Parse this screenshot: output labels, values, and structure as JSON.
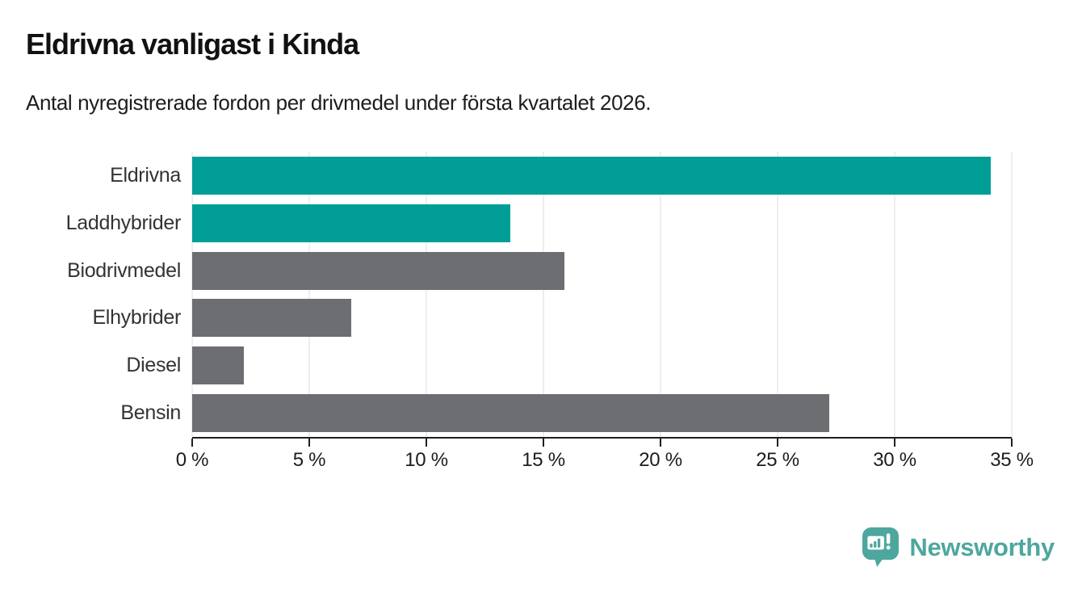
{
  "title": "Eldrivna vanligast i Kinda",
  "subtitle": "Antal nyregistrerade fordon per drivmedel under första kvartalet 2026.",
  "chart_data": {
    "type": "bar",
    "orientation": "horizontal",
    "title": "Eldrivna vanligast i Kinda",
    "subtitle": "Antal nyregistrerade fordon per drivmedel under första kvartalet 2026.",
    "categories": [
      "Eldrivna",
      "Laddhybrider",
      "Biodrivmedel",
      "Elhybrider",
      "Diesel",
      "Bensin"
    ],
    "values": [
      34.1,
      13.6,
      15.9,
      6.8,
      2.2,
      27.2
    ],
    "unit": "%",
    "xlim": [
      0,
      35
    ],
    "x_ticks": [
      0,
      5,
      10,
      15,
      20,
      25,
      30,
      35
    ],
    "x_tick_labels": [
      "0 %",
      "5 %",
      "10 %",
      "15 %",
      "20 %",
      "25 %",
      "30 %",
      "35 %"
    ],
    "bar_colors": [
      "#009E96",
      "#009E96",
      "#6D6E71",
      "#6D6E71",
      "#6D6E71",
      "#6D6E71"
    ],
    "grid": true,
    "legend": "none"
  },
  "colors": {
    "accent_teal": "#009E96",
    "bar_gray": "#6D6E71",
    "gridline": "#DEDEDE",
    "axis": "#1F1F1F",
    "logo_teal": "#4EA79E"
  },
  "footer": {
    "brand": "Newsworthy"
  }
}
